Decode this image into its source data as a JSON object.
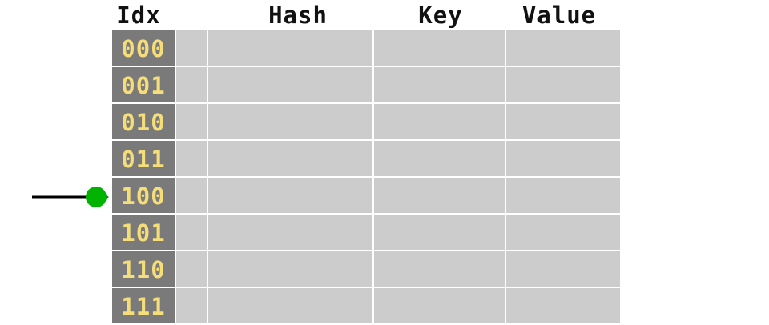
{
  "headers": {
    "idx": "Idx",
    "hash": "Hash",
    "key": "Key",
    "value": "Value"
  },
  "rows": [
    {
      "idx": "000"
    },
    {
      "idx": "001"
    },
    {
      "idx": "010"
    },
    {
      "idx": "011"
    },
    {
      "idx": "100"
    },
    {
      "idx": "101"
    },
    {
      "idx": "110"
    },
    {
      "idx": "111"
    }
  ],
  "pointer": {
    "row_index": 4,
    "dot_color": "#00b300",
    "arrow_color": "#000000"
  },
  "colors": {
    "idx_background": "#7a7a7a",
    "idx_text": "#f5dd7a",
    "cell_background": "#cccccc"
  }
}
